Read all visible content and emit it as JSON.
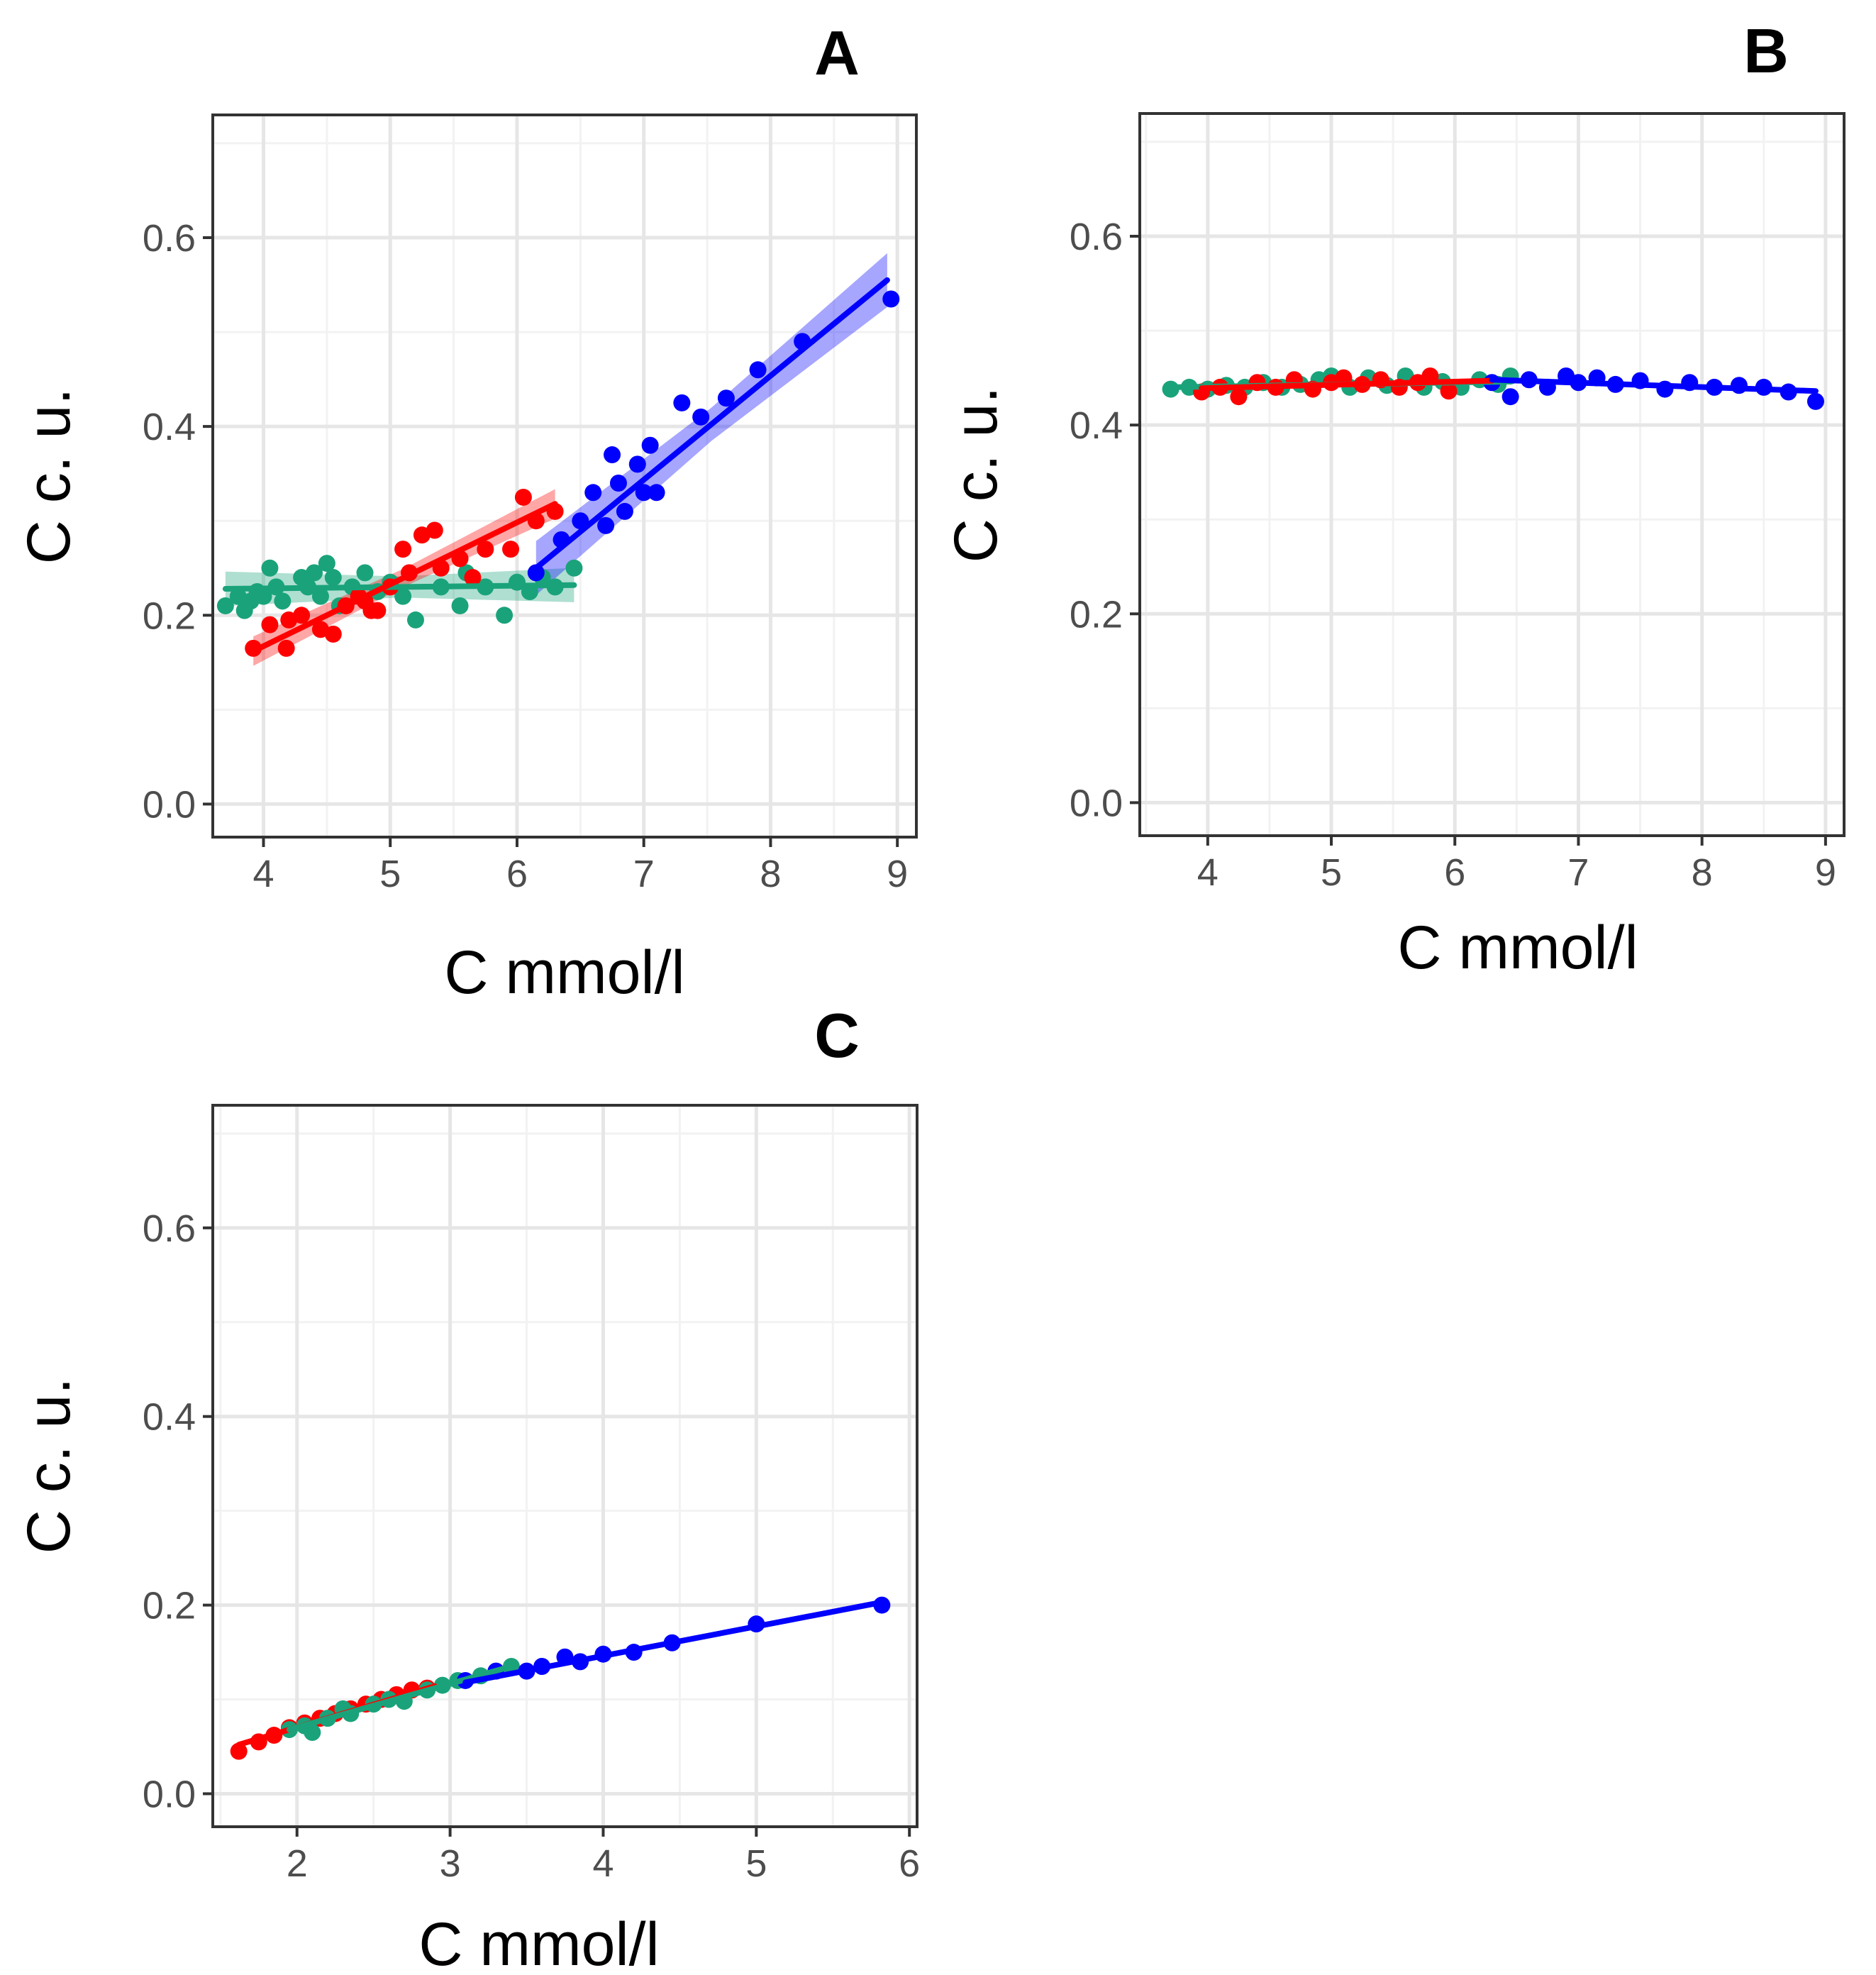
{
  "figure": {
    "title": ""
  },
  "colors": {
    "red": "#ff0000",
    "green": "#1aa37a",
    "blue": "#0000ff"
  },
  "chart_data": [
    {
      "panel": "A",
      "type": "scatter",
      "title": "A",
      "xlabel": "C mmol/l",
      "ylabel": "C c. u.",
      "xlim": [
        3.6,
        9.15
      ],
      "ylim": [
        -0.035,
        0.73
      ],
      "xticks": [
        4,
        5,
        6,
        7,
        8,
        9
      ],
      "yticks": [
        0.0,
        0.2,
        0.4,
        0.6
      ],
      "xtick_labels": [
        "4",
        "5",
        "6",
        "7",
        "8",
        "9"
      ],
      "ytick_labels": [
        "0.0",
        "0.2",
        "0.4",
        "0.6"
      ],
      "grid": true,
      "series": [
        {
          "name": "green",
          "color": "green",
          "x": [
            3.7,
            3.8,
            3.85,
            3.9,
            3.95,
            4.0,
            4.05,
            4.1,
            4.15,
            4.3,
            4.35,
            4.4,
            4.45,
            4.5,
            4.55,
            4.6,
            4.7,
            4.8,
            4.9,
            5.0,
            5.1,
            5.2,
            5.4,
            5.55,
            5.6,
            5.75,
            5.9,
            6.0,
            6.1,
            6.2,
            6.3,
            6.45
          ],
          "y": [
            0.21,
            0.22,
            0.205,
            0.215,
            0.225,
            0.22,
            0.25,
            0.23,
            0.215,
            0.24,
            0.23,
            0.245,
            0.22,
            0.255,
            0.24,
            0.21,
            0.23,
            0.245,
            0.225,
            0.235,
            0.22,
            0.195,
            0.23,
            0.21,
            0.245,
            0.23,
            0.2,
            0.235,
            0.225,
            0.24,
            0.23,
            0.25
          ],
          "fit": {
            "x": [
              3.7,
              6.45
            ],
            "y": [
              0.228,
              0.232
            ],
            "ci": 0.014
          }
        },
        {
          "name": "red",
          "color": "red",
          "x": [
            3.92,
            4.05,
            4.18,
            4.2,
            4.3,
            4.45,
            4.55,
            4.65,
            4.75,
            4.8,
            4.85,
            4.9,
            5.0,
            5.1,
            5.15,
            5.25,
            5.35,
            5.4,
            5.55,
            5.65,
            5.75,
            5.95,
            6.05,
            6.15,
            6.3
          ],
          "y": [
            0.165,
            0.19,
            0.165,
            0.195,
            0.2,
            0.185,
            0.18,
            0.21,
            0.22,
            0.215,
            0.205,
            0.205,
            0.23,
            0.27,
            0.245,
            0.285,
            0.29,
            0.25,
            0.26,
            0.24,
            0.27,
            0.27,
            0.325,
            0.3,
            0.31
          ],
          "fit": {
            "x": [
              3.92,
              6.3
            ],
            "y": [
              0.162,
              0.318
            ],
            "ci": 0.012
          }
        },
        {
          "name": "blue",
          "color": "blue",
          "x": [
            6.15,
            6.35,
            6.5,
            6.6,
            6.7,
            6.75,
            6.8,
            6.85,
            6.95,
            7.0,
            7.05,
            7.1,
            7.3,
            7.45,
            7.65,
            7.9,
            8.25,
            8.95
          ],
          "y": [
            0.245,
            0.28,
            0.3,
            0.33,
            0.295,
            0.37,
            0.34,
            0.31,
            0.36,
            0.33,
            0.38,
            0.33,
            0.425,
            0.41,
            0.43,
            0.46,
            0.49,
            0.535
          ],
          "fit": {
            "x": [
              6.15,
              8.92
            ],
            "y": [
              0.25,
              0.555
            ],
            "ci": 0.022
          }
        }
      ]
    },
    {
      "panel": "B",
      "type": "scatter",
      "title": "B",
      "xlabel": "C mmol/l",
      "ylabel": "C c. u.",
      "xlim": [
        3.45,
        9.15
      ],
      "ylim": [
        -0.035,
        0.73
      ],
      "xticks": [
        4,
        5,
        6,
        7,
        8,
        9
      ],
      "yticks": [
        0.0,
        0.2,
        0.4,
        0.6
      ],
      "xtick_labels": [
        "4",
        "5",
        "6",
        "7",
        "8",
        "9"
      ],
      "ytick_labels": [
        "0.0",
        "0.2",
        "0.4",
        "0.6"
      ],
      "grid": true,
      "series": [
        {
          "name": "green",
          "color": "green",
          "x": [
            3.7,
            3.85,
            4.0,
            4.15,
            4.3,
            4.45,
            4.6,
            4.75,
            4.9,
            5.0,
            5.15,
            5.3,
            5.45,
            5.6,
            5.75,
            5.9,
            6.05,
            6.2,
            6.35,
            6.45
          ],
          "y": [
            0.438,
            0.44,
            0.438,
            0.442,
            0.44,
            0.445,
            0.44,
            0.443,
            0.448,
            0.452,
            0.44,
            0.45,
            0.442,
            0.452,
            0.44,
            0.446,
            0.44,
            0.448,
            0.443,
            0.452
          ],
          "fit": {
            "x": [
              3.7,
              6.45
            ],
            "y": [
              0.44,
              0.446
            ],
            "ci": 0.0
          }
        },
        {
          "name": "red",
          "color": "red",
          "x": [
            3.95,
            4.1,
            4.25,
            4.4,
            4.55,
            4.7,
            4.85,
            5.0,
            5.1,
            5.25,
            5.4,
            5.55,
            5.7,
            5.8,
            5.95
          ],
          "y": [
            0.435,
            0.44,
            0.43,
            0.445,
            0.44,
            0.448,
            0.438,
            0.445,
            0.45,
            0.443,
            0.448,
            0.44,
            0.445,
            0.452,
            0.436
          ],
          "fit": {
            "x": [
              3.95,
              6.3
            ],
            "y": [
              0.439,
              0.447
            ],
            "ci": 0.0
          }
        },
        {
          "name": "blue",
          "color": "blue",
          "x": [
            6.3,
            6.45,
            6.6,
            6.75,
            6.9,
            7.0,
            7.15,
            7.3,
            7.5,
            7.7,
            7.9,
            8.1,
            8.3,
            8.5,
            8.7,
            8.92
          ],
          "y": [
            0.445,
            0.43,
            0.448,
            0.44,
            0.452,
            0.445,
            0.45,
            0.443,
            0.447,
            0.438,
            0.445,
            0.44,
            0.442,
            0.44,
            0.435,
            0.425
          ],
          "fit": {
            "x": [
              6.3,
              8.92
            ],
            "y": [
              0.448,
              0.436
            ],
            "ci": 0.0
          }
        }
      ]
    },
    {
      "panel": "C",
      "type": "scatter",
      "title": "C",
      "xlabel": "C mmol/l",
      "ylabel": "C c. u.",
      "xlim": [
        1.45,
        6.05
      ],
      "ylim": [
        -0.035,
        0.73
      ],
      "xticks": [
        2,
        3,
        4,
        5,
        6
      ],
      "yticks": [
        0.0,
        0.2,
        0.4,
        0.6
      ],
      "xtick_labels": [
        "2",
        "3",
        "4",
        "5",
        "6"
      ],
      "ytick_labels": [
        "0.0",
        "0.2",
        "0.4",
        "0.6"
      ],
      "grid": true,
      "series": [
        {
          "name": "red",
          "color": "red",
          "x": [
            1.62,
            1.75,
            1.85,
            1.95,
            2.05,
            2.15,
            2.25,
            2.35,
            2.45,
            2.55,
            2.65,
            2.75,
            2.85
          ],
          "y": [
            0.045,
            0.055,
            0.062,
            0.07,
            0.075,
            0.08,
            0.085,
            0.09,
            0.095,
            0.1,
            0.105,
            0.11,
            0.112
          ],
          "fit": {
            "x": [
              1.62,
              2.9
            ],
            "y": [
              0.052,
              0.114
            ],
            "ci": 0.0
          }
        },
        {
          "name": "green",
          "color": "green",
          "x": [
            1.95,
            2.05,
            2.1,
            2.2,
            2.3,
            2.35,
            2.5,
            2.6,
            2.7,
            2.85,
            2.95,
            3.05,
            3.2,
            3.4
          ],
          "y": [
            0.068,
            0.072,
            0.065,
            0.08,
            0.09,
            0.085,
            0.095,
            0.1,
            0.098,
            0.11,
            0.115,
            0.12,
            0.125,
            0.135
          ],
          "fit": {
            "x": [
              1.95,
              3.4
            ],
            "y": [
              0.068,
              0.135
            ],
            "ci": 0.0
          }
        },
        {
          "name": "blue",
          "color": "blue",
          "x": [
            3.1,
            3.3,
            3.5,
            3.6,
            3.75,
            3.85,
            4.0,
            4.2,
            4.45,
            5.0,
            5.82
          ],
          "y": [
            0.12,
            0.13,
            0.13,
            0.135,
            0.145,
            0.14,
            0.148,
            0.15,
            0.16,
            0.18,
            0.2
          ],
          "fit": {
            "x": [
              3.1,
              5.82
            ],
            "y": [
              0.118,
              0.203
            ],
            "ci": 0.0
          }
        }
      ]
    }
  ]
}
